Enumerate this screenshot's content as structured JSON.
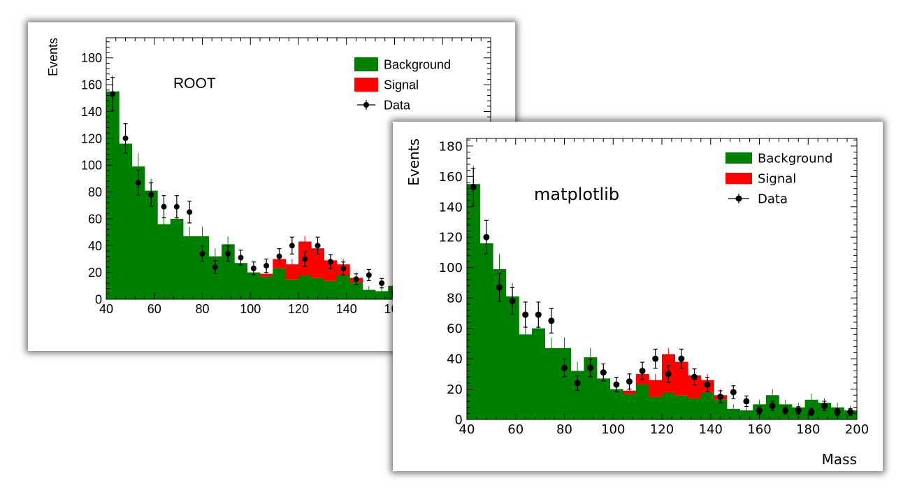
{
  "colors": {
    "background": "#008000",
    "signal": "#ff0000",
    "data": "#000000"
  },
  "chart_data": [
    {
      "type": "bar",
      "style": "histogram (ROOT)",
      "title": "ROOT",
      "xlabel": "",
      "ylabel": "Events",
      "xlim": [
        40,
        200
      ],
      "ylim": [
        0,
        195
      ],
      "x_ticks": [
        "40",
        "60",
        "80",
        "100",
        "120",
        "140",
        "160"
      ],
      "y_ticks": [
        "0",
        "20",
        "40",
        "60",
        "80",
        "100",
        "120",
        "140",
        "160",
        "180"
      ],
      "legend": {
        "position": "top-right",
        "entries": [
          "Background",
          "Signal",
          "Data"
        ]
      },
      "bin_edges": [
        40,
        45.33,
        50.67,
        56,
        61.33,
        66.67,
        72,
        77.33,
        82.67,
        88,
        93.33,
        98.67,
        104,
        109.33,
        114.67,
        120,
        125.33,
        130.67,
        136,
        141.33,
        146.67,
        152,
        157.33,
        162.67,
        168,
        173.33,
        178.67,
        184,
        189.33,
        194.67,
        200
      ],
      "series": [
        {
          "name": "Background",
          "color": "#008000",
          "values": [
            155,
            116,
            99,
            81,
            56,
            60,
            47,
            47,
            32,
            41,
            27,
            20,
            17,
            23,
            15,
            18,
            16,
            14,
            18,
            13,
            7,
            6,
            10,
            16,
            10,
            8,
            13,
            11,
            8,
            6
          ],
          "errors": [
            12,
            10,
            10,
            9,
            8,
            8,
            7,
            7,
            6,
            6,
            5,
            5,
            4,
            5,
            4,
            4,
            4,
            4,
            4,
            4,
            3,
            3,
            3,
            4,
            3,
            3,
            4,
            3,
            3,
            3
          ]
        },
        {
          "name": "Signal",
          "color": "#ff0000",
          "values": [
            0,
            0,
            0,
            0,
            0,
            0,
            0,
            0,
            0,
            0,
            0,
            0,
            2,
            7,
            11,
            25,
            22,
            15,
            8,
            3,
            0,
            0,
            0,
            0,
            0,
            0,
            0,
            0,
            0,
            0
          ]
        },
        {
          "name": "Data",
          "color": "#000000",
          "values": [
            153,
            120,
            87,
            78,
            69,
            69,
            65,
            34,
            24,
            34,
            31,
            23,
            25,
            32,
            40,
            30,
            40,
            28,
            23,
            15,
            18,
            12,
            6,
            9,
            6,
            6,
            5,
            9,
            5,
            5
          ],
          "errors": [
            12.4,
            11,
            9.3,
            8.8,
            8.3,
            8.3,
            8.1,
            5.8,
            4.9,
            5.8,
            5.6,
            4.8,
            5,
            5.7,
            6.3,
            5.5,
            6.3,
            5.3,
            4.8,
            3.9,
            4.2,
            3.5,
            2.4,
            3,
            2.4,
            2.4,
            2.2,
            3,
            2.2,
            2.2
          ]
        }
      ]
    },
    {
      "type": "bar",
      "style": "histogram (matplotlib)",
      "title": "matplotlib",
      "xlabel": "Mass",
      "ylabel": "Events",
      "xlim": [
        40,
        200
      ],
      "ylim": [
        0,
        185
      ],
      "x_ticks": [
        "40",
        "60",
        "80",
        "100",
        "120",
        "140",
        "160",
        "180",
        "200"
      ],
      "y_ticks": [
        "0",
        "20",
        "40",
        "60",
        "80",
        "100",
        "120",
        "140",
        "160",
        "180"
      ],
      "legend": {
        "position": "top-right",
        "entries": [
          "Background",
          "Signal",
          "Data"
        ]
      },
      "bin_edges": [
        40,
        45.33,
        50.67,
        56,
        61.33,
        66.67,
        72,
        77.33,
        82.67,
        88,
        93.33,
        98.67,
        104,
        109.33,
        114.67,
        120,
        125.33,
        130.67,
        136,
        141.33,
        146.67,
        152,
        157.33,
        162.67,
        168,
        173.33,
        178.67,
        184,
        189.33,
        194.67,
        200
      ],
      "series": [
        {
          "name": "Background",
          "color": "#008000",
          "values": [
            155,
            116,
            99,
            81,
            56,
            60,
            47,
            47,
            32,
            41,
            27,
            20,
            17,
            23,
            15,
            18,
            16,
            14,
            18,
            13,
            7,
            6,
            10,
            16,
            10,
            8,
            13,
            11,
            8,
            6
          ],
          "errors": [
            12,
            10,
            10,
            9,
            8,
            8,
            7,
            7,
            6,
            6,
            5,
            5,
            4,
            5,
            4,
            4,
            4,
            4,
            4,
            4,
            3,
            3,
            3,
            4,
            3,
            3,
            4,
            3,
            3,
            3
          ]
        },
        {
          "name": "Signal",
          "color": "#ff0000",
          "values": [
            0,
            0,
            0,
            0,
            0,
            0,
            0,
            0,
            0,
            0,
            0,
            0,
            2,
            7,
            11,
            25,
            22,
            15,
            8,
            3,
            0,
            0,
            0,
            0,
            0,
            0,
            0,
            0,
            0,
            0
          ]
        },
        {
          "name": "Data",
          "color": "#000000",
          "values": [
            153,
            120,
            87,
            78,
            69,
            69,
            65,
            34,
            24,
            34,
            31,
            23,
            25,
            32,
            40,
            30,
            40,
            28,
            23,
            15,
            18,
            12,
            6,
            9,
            6,
            6,
            5,
            9,
            5,
            5
          ],
          "errors": [
            12.4,
            11,
            9.3,
            8.8,
            8.3,
            8.3,
            8.1,
            5.8,
            4.9,
            5.8,
            5.6,
            4.8,
            5,
            5.7,
            6.3,
            5.5,
            6.3,
            5.3,
            4.8,
            3.9,
            4.2,
            3.5,
            2.4,
            3,
            2.4,
            2.4,
            2.2,
            3,
            2.2,
            2.2
          ]
        }
      ]
    }
  ]
}
